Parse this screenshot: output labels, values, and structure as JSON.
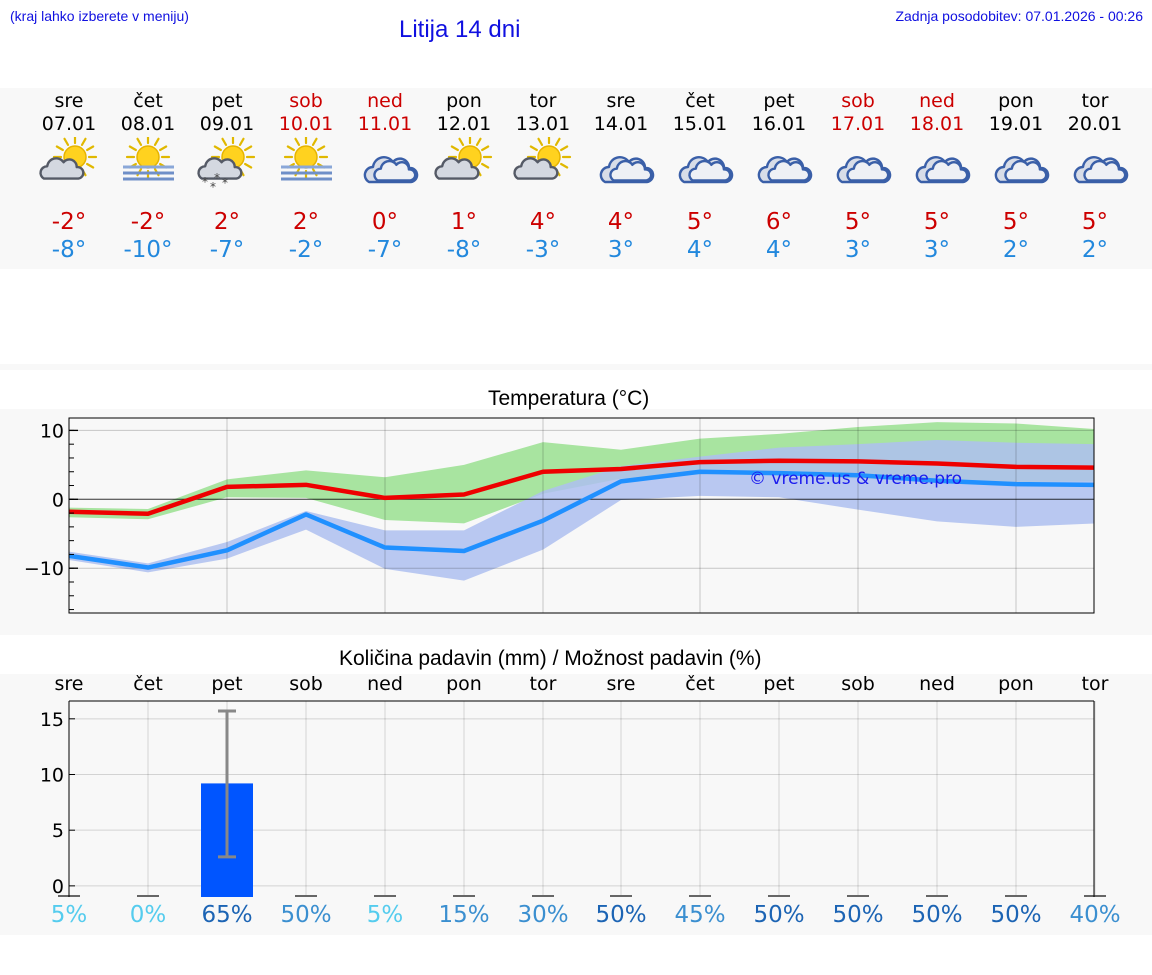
{
  "header": {
    "left_note": "(kraj lahko izberete v meniju)",
    "title": "Litija 14 dni",
    "updated": "Zadnja posodobitev: 07.01.2026 - 00:26"
  },
  "colors": {
    "max_line": "#ee0000",
    "min_line": "#2090ff",
    "max_band": "#a8e4a0",
    "min_band": "#aebff0",
    "overlap_band": "#8cc4b0",
    "bar": "#0055ff",
    "error_bar": "#888888",
    "weekend": "#cc0000",
    "watermark": "#1a1aee"
  },
  "days": [
    {
      "wd": "sre",
      "date": "07.01",
      "weekend": false,
      "icon": "partly-cloudy-icon",
      "tmax": "-2°",
      "tmin": "-8°"
    },
    {
      "wd": "čet",
      "date": "08.01",
      "weekend": false,
      "icon": "sun-fog-icon",
      "tmax": "-2°",
      "tmin": "-10°"
    },
    {
      "wd": "pet",
      "date": "09.01",
      "weekend": false,
      "icon": "partly-cloudy-snow-icon",
      "tmax": "2°",
      "tmin": "-7°"
    },
    {
      "wd": "sob",
      "date": "10.01",
      "weekend": true,
      "icon": "sun-fog-icon",
      "tmax": "2°",
      "tmin": "-2°"
    },
    {
      "wd": "ned",
      "date": "11.01",
      "weekend": true,
      "icon": "cloudy-icon",
      "tmax": "0°",
      "tmin": "-7°"
    },
    {
      "wd": "pon",
      "date": "12.01",
      "weekend": false,
      "icon": "partly-cloudy-icon",
      "tmax": "1°",
      "tmin": "-8°"
    },
    {
      "wd": "tor",
      "date": "13.01",
      "weekend": false,
      "icon": "partly-cloudy-icon",
      "tmax": "4°",
      "tmin": "-3°"
    },
    {
      "wd": "sre",
      "date": "14.01",
      "weekend": false,
      "icon": "cloudy-icon",
      "tmax": "4°",
      "tmin": "3°"
    },
    {
      "wd": "čet",
      "date": "15.01",
      "weekend": false,
      "icon": "cloudy-icon",
      "tmax": "5°",
      "tmin": "4°"
    },
    {
      "wd": "pet",
      "date": "16.01",
      "weekend": false,
      "icon": "cloudy-icon",
      "tmax": "6°",
      "tmin": "4°"
    },
    {
      "wd": "sob",
      "date": "17.01",
      "weekend": true,
      "icon": "cloudy-icon",
      "tmax": "5°",
      "tmin": "3°"
    },
    {
      "wd": "ned",
      "date": "18.01",
      "weekend": true,
      "icon": "cloudy-icon",
      "tmax": "5°",
      "tmin": "3°"
    },
    {
      "wd": "pon",
      "date": "19.01",
      "weekend": false,
      "icon": "cloudy-icon",
      "tmax": "5°",
      "tmin": "2°"
    },
    {
      "wd": "tor",
      "date": "20.01",
      "weekend": false,
      "icon": "cloudy-icon",
      "tmax": "5°",
      "tmin": "2°"
    }
  ],
  "chart_data": [
    {
      "type": "line",
      "title": "Temperatura (°C)",
      "watermark": "© vreme.us & vreme.pro",
      "x": [
        0,
        1,
        2,
        3,
        4,
        5,
        6,
        7,
        8,
        9,
        10,
        11,
        12,
        13
      ],
      "ylim": [
        -16.5,
        11.8
      ],
      "yticks": [
        10,
        0,
        -10
      ],
      "ytick_labels": [
        "10",
        "0",
        "−10"
      ],
      "grid": true,
      "series": [
        {
          "name": "max",
          "values": [
            -1.8,
            -2.1,
            1.8,
            2.1,
            0.2,
            0.7,
            4.0,
            4.4,
            5.4,
            5.6,
            5.5,
            5.2,
            4.7,
            4.6
          ],
          "band_low": [
            -2.6,
            -2.9,
            0.3,
            0.2,
            -3.0,
            -3.5,
            0.8,
            3.0,
            3.6,
            3.6,
            3.0,
            2.6,
            2.5,
            2.6
          ],
          "band_high": [
            -1.2,
            -1.4,
            2.9,
            4.2,
            3.2,
            5.0,
            8.3,
            7.2,
            8.8,
            9.5,
            10.5,
            11.2,
            11.0,
            10.2
          ]
        },
        {
          "name": "min",
          "values": [
            -8.2,
            -9.9,
            -7.4,
            -2.2,
            -7.0,
            -7.5,
            -3.1,
            2.6,
            4.0,
            3.8,
            3.5,
            2.7,
            2.2,
            2.1
          ],
          "band_low": [
            -8.8,
            -10.6,
            -8.6,
            -4.4,
            -10.1,
            -11.8,
            -7.3,
            -0.1,
            0.5,
            0.3,
            -1.5,
            -3.2,
            -4.0,
            -3.5
          ],
          "band_high": [
            -7.6,
            -9.3,
            -6.2,
            -1.7,
            -4.5,
            -4.5,
            1.2,
            4.8,
            6.2,
            7.5,
            8.0,
            8.6,
            8.2,
            8.0
          ]
        }
      ]
    },
    {
      "type": "bar",
      "title": "Količina padavin (mm) / Možnost padavin (%)",
      "categories": [
        "sre",
        "čet",
        "pet",
        "sob",
        "ned",
        "pon",
        "tor",
        "sre",
        "čet",
        "pet",
        "sob",
        "ned",
        "pon",
        "tor"
      ],
      "values": [
        0,
        0,
        9.2,
        0,
        0,
        0,
        0,
        0,
        0,
        0,
        0,
        0,
        0,
        0
      ],
      "error_bars": [
        null,
        null,
        [
          2.6,
          15.7
        ],
        null,
        null,
        null,
        null,
        null,
        null,
        null,
        null,
        null,
        null,
        null
      ],
      "ylim": [
        -1,
        16.6
      ],
      "yticks": [
        15,
        10,
        5,
        0
      ],
      "ytick_labels": [
        "15",
        "10",
        "5",
        "0"
      ],
      "chance": [
        "5%",
        "0%",
        "65%",
        "50%",
        "5%",
        "15%",
        "30%",
        "50%",
        "45%",
        "50%",
        "50%",
        "50%",
        "50%",
        "40%"
      ],
      "chance_colors": [
        "#55ccee",
        "#55ccee",
        "#1c64b4",
        "#3b8fd0",
        "#55ccee",
        "#3b8fd0",
        "#3b8fd0",
        "#1c64b4",
        "#3b8fd0",
        "#1c64b4",
        "#1c64b4",
        "#1c64b4",
        "#1c64b4",
        "#3b8fd0"
      ],
      "grid": true
    }
  ]
}
